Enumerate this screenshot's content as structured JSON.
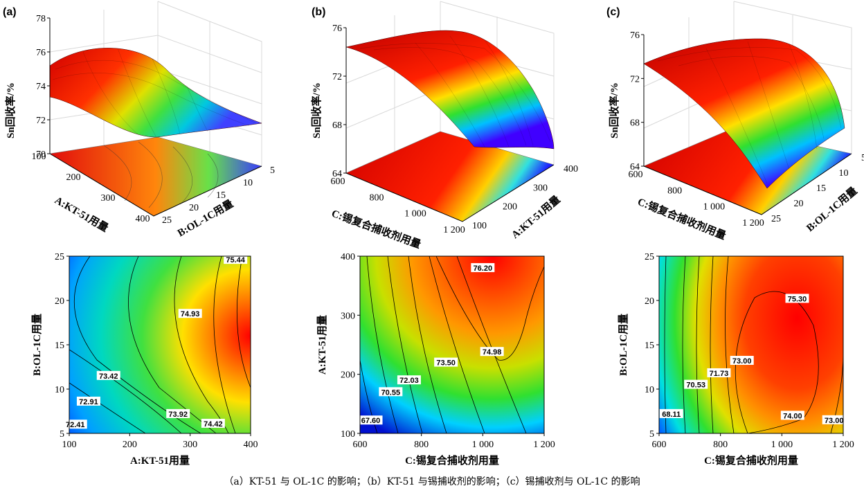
{
  "caption": "（a）KT-51 与 OL-1C 的影响；（b）KT-51 与锡捕收剂的影响；（c）锡捕收剂与 OL-1C 的影响",
  "colors": {
    "low": "#0000ff",
    "mid": "#00ff00",
    "high": "#ff0000"
  },
  "chart_data": [
    {
      "panel": "(a)",
      "type": "surface",
      "zlabel": "Sn回收率/%",
      "xlabel": "A:KT-51用量",
      "ylabel": "B:OL-1C用量",
      "x_ticks": [
        "100",
        "200",
        "300",
        "400"
      ],
      "y_ticks": [
        "5",
        "10",
        "15",
        "20",
        "25"
      ],
      "z_ticks": [
        "70",
        "72",
        "74",
        "76",
        "78"
      ],
      "zlim": [
        70,
        78
      ]
    },
    {
      "panel": "(b)",
      "type": "surface",
      "zlabel": "Sn回收率/%",
      "xlabel": "C:锡复合捕收剂用量",
      "ylabel": "A:KT-51用量",
      "x_ticks": [
        "600",
        "800",
        "1 000",
        "1 200"
      ],
      "y_ticks": [
        "100",
        "200",
        "300",
        "400"
      ],
      "z_ticks": [
        "64",
        "68",
        "72",
        "76"
      ],
      "zlim": [
        64,
        77
      ]
    },
    {
      "panel": "(c)",
      "type": "surface",
      "zlabel": "Sn回收率/%",
      "xlabel": "C:锡复合捕收剂用量",
      "ylabel": "B:OL-1C用量",
      "x_ticks": [
        "600",
        "800",
        "1 000",
        "1 200"
      ],
      "y_ticks": [
        "5",
        "10",
        "15",
        "20",
        "25"
      ],
      "z_ticks": [
        "64",
        "68",
        "72",
        "76"
      ],
      "zlim": [
        64,
        77
      ]
    },
    {
      "type": "heatmap",
      "subtype": "contour",
      "xlabel": "A:KT-51用量",
      "ylabel": "B:OL-1C用量",
      "xlim": [
        100,
        400
      ],
      "ylim": [
        5,
        25
      ],
      "x_ticks": [
        "100",
        "200",
        "300",
        "400"
      ],
      "y_ticks": [
        "5",
        "10",
        "15",
        "20",
        "25"
      ],
      "contour_labels": [
        {
          "text": "75.44",
          "x": 375,
          "y": 24.6
        },
        {
          "text": "74.93",
          "x": 300,
          "y": 18.5
        },
        {
          "text": "73.42",
          "x": 165,
          "y": 11.5
        },
        {
          "text": "72.91",
          "x": 132,
          "y": 8.6
        },
        {
          "text": "72.41",
          "x": 110,
          "y": 6.0
        },
        {
          "text": "73.92",
          "x": 280,
          "y": 7.2
        },
        {
          "text": "74.42",
          "x": 338,
          "y": 6.1
        }
      ]
    },
    {
      "type": "heatmap",
      "subtype": "contour",
      "xlabel": "C:锡复合捕收剂用量",
      "ylabel": "A:KT-51用量",
      "xlim": [
        600,
        1200
      ],
      "ylim": [
        100,
        400
      ],
      "x_ticks": [
        "600",
        "800",
        "1 000",
        "1 200"
      ],
      "y_ticks": [
        "100",
        "200",
        "300",
        "400"
      ],
      "contour_labels": [
        {
          "text": "76.20",
          "x": 1000,
          "y": 380
        },
        {
          "text": "74.98",
          "x": 1030,
          "y": 238
        },
        {
          "text": "73.50",
          "x": 880,
          "y": 220
        },
        {
          "text": "72.03",
          "x": 760,
          "y": 190
        },
        {
          "text": "70.55",
          "x": 700,
          "y": 170
        },
        {
          "text": "67.60",
          "x": 635,
          "y": 122
        }
      ]
    },
    {
      "type": "heatmap",
      "subtype": "contour",
      "xlabel": "C:锡复合捕收剂用量",
      "ylabel": "B:OL-1C用量",
      "xlim": [
        600,
        1200
      ],
      "ylim": [
        5,
        25
      ],
      "x_ticks": [
        "600",
        "800",
        "1 000",
        "1 200"
      ],
      "y_ticks": [
        "5",
        "10",
        "15",
        "20",
        "25"
      ],
      "contour_labels": [
        {
          "text": "75.30",
          "x": 1050,
          "y": 20.2
        },
        {
          "text": "73.00",
          "x": 870,
          "y": 13.2
        },
        {
          "text": "71.73",
          "x": 795,
          "y": 11.8
        },
        {
          "text": "70.53",
          "x": 720,
          "y": 10.5
        },
        {
          "text": "68.11",
          "x": 640,
          "y": 7.2
        },
        {
          "text": "74.00",
          "x": 1035,
          "y": 7.0
        },
        {
          "text": "73.00",
          "x": 1170,
          "y": 6.5
        }
      ]
    }
  ]
}
